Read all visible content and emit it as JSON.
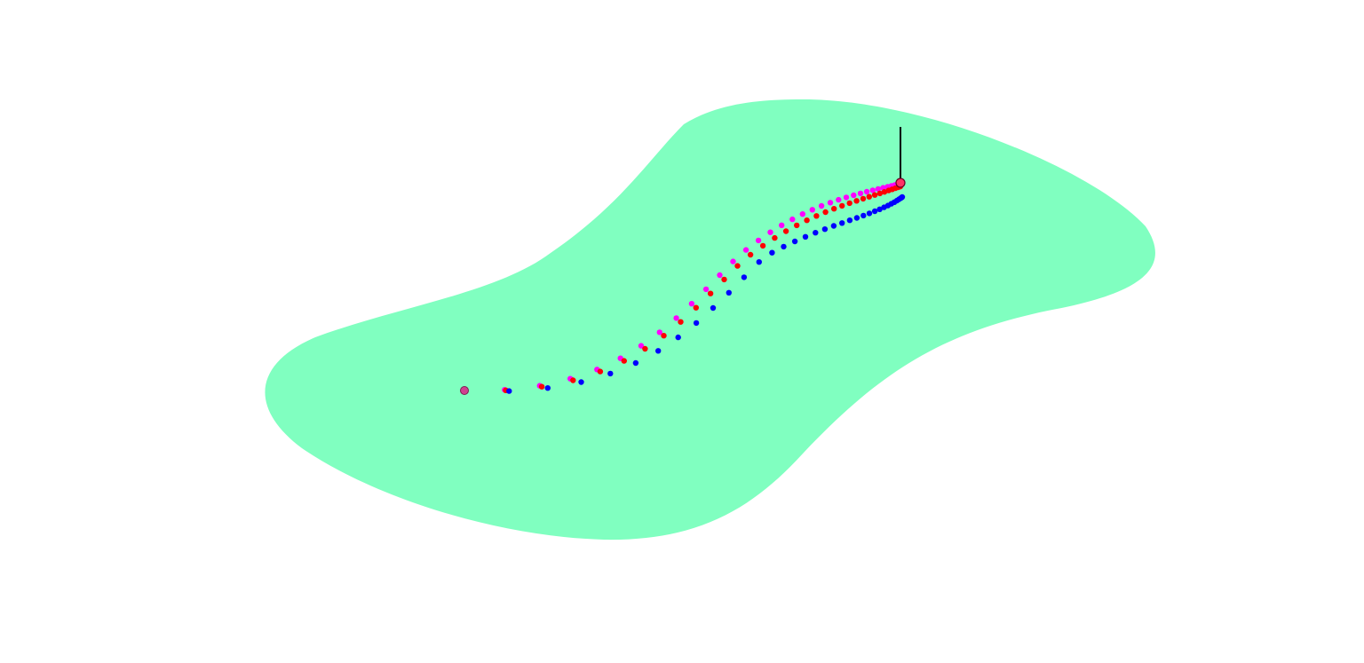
{
  "scene": {
    "background_color": "#ffffff",
    "green_color": "#80ffc0",
    "pin_color": "#000000",
    "trails": [
      {
        "name": "magenta-trail",
        "color": "#ff00ff",
        "point_count": 36
      },
      {
        "name": "red-trail",
        "color": "#ff0000",
        "point_count": 36
      },
      {
        "name": "blue-trail",
        "color": "#0000ff",
        "point_count": 36
      }
    ],
    "ball": {
      "color": "#ff3366",
      "outline": "#660022"
    },
    "start_ball": {
      "color": "#d04090"
    }
  }
}
